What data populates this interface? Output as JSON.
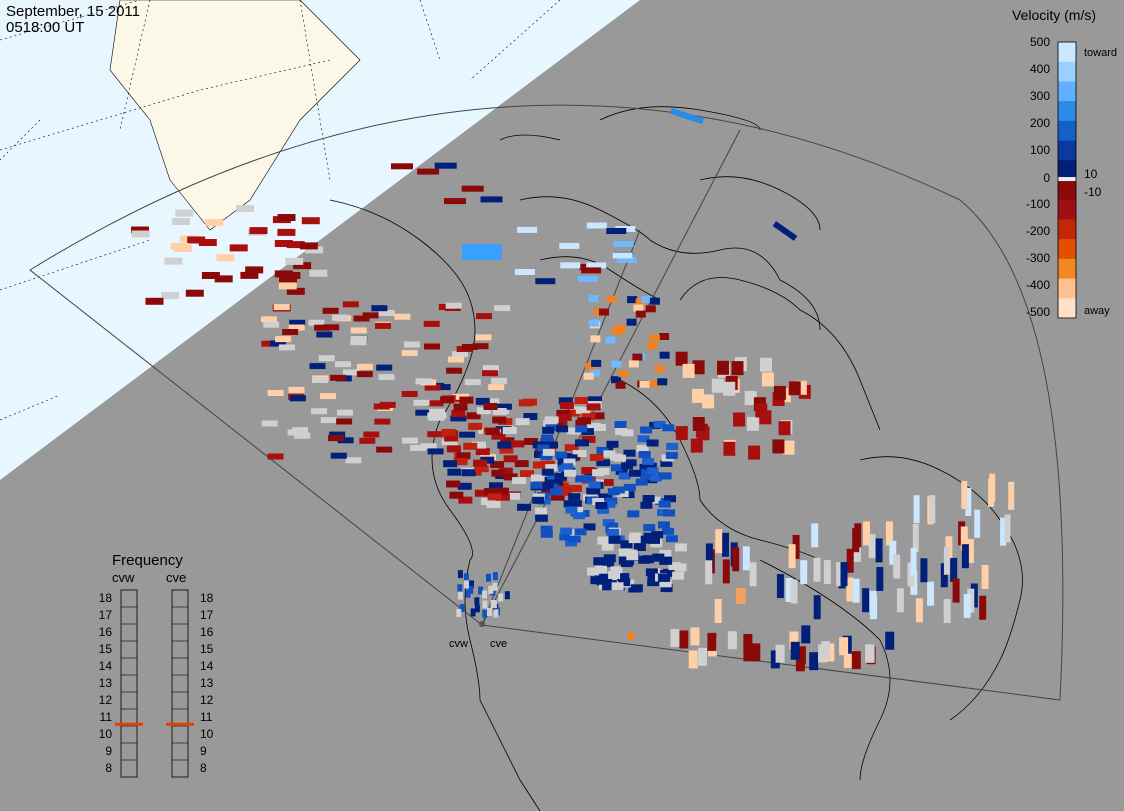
{
  "header": {
    "date": "September, 15 2011",
    "time": "0518:00 UT"
  },
  "colors": {
    "background_gray": "#999999",
    "daylight_ocean": "#e8f6ff",
    "daylight_land": "#fbf8e8",
    "coastline": "#000000",
    "grid_line": "#555555",
    "freq_marker": "#e04000"
  },
  "velocity_scale": {
    "title": "Velocity (m/s)",
    "top_label": "toward",
    "bottom_label": "away",
    "ticks": [
      "500",
      "400",
      "300",
      "200",
      "100",
      "10",
      "0",
      "-10",
      "-100",
      "-200",
      "-300",
      "-400",
      "-500"
    ],
    "colors": [
      "#cce8ff",
      "#99d0ff",
      "#60b0ff",
      "#2a8ae8",
      "#1560c8",
      "#0a3aa0",
      "#00207a",
      "#8a0a0a",
      "#a01010",
      "#c02808",
      "#e05000",
      "#f08a20",
      "#ffc090",
      "#ffe0c8"
    ]
  },
  "frequency": {
    "title": "Frequency",
    "radars": [
      "cvw",
      "cve"
    ],
    "levels": [
      "18",
      "17",
      "16",
      "15",
      "14",
      "13",
      "12",
      "11",
      "10",
      "9",
      "8"
    ],
    "cvw_mhz": 10.6,
    "cve_mhz": 10.6
  },
  "radar_sites": {
    "labels": [
      "cvw",
      "cve"
    ]
  }
}
